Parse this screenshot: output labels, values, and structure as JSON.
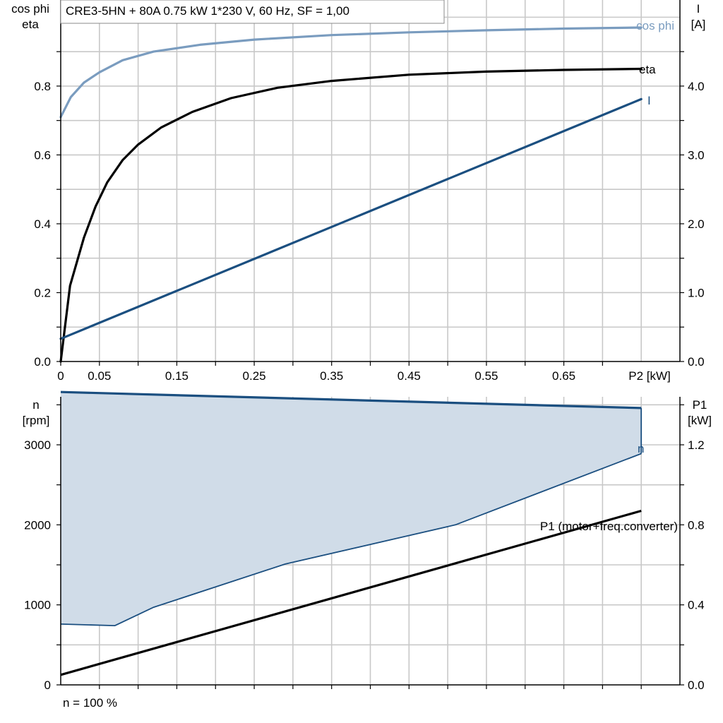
{
  "chart_data": [
    {
      "type": "line",
      "title": "CRE3-5HN + 80A   0.75 kW   1*230 V, 60 Hz, SF = 1,00",
      "xlabel": "P2 [kW]",
      "ylabel_left": [
        "cos phi",
        "eta"
      ],
      "ylabel_right": [
        "I",
        "[A]"
      ],
      "xlim": [
        0,
        0.8
      ],
      "ylim_left": [
        0,
        1.05
      ],
      "ylim_right": [
        0,
        5.25
      ],
      "x_ticks": [
        "0",
        "0.05",
        "0.15",
        "0.25",
        "0.35",
        "0.45",
        "0.55",
        "0.65"
      ],
      "y_ticks_left": [
        "0.0",
        "0.2",
        "0.4",
        "0.6",
        "0.8"
      ],
      "y_ticks_right": [
        "0.0",
        "1.0",
        "2.0",
        "3.0",
        "4.0"
      ],
      "grid": true,
      "series": [
        {
          "name": "cos phi",
          "axis": "left",
          "color": "#7a9cbf",
          "points": [
            [
              0,
              0.71
            ],
            [
              0.013,
              0.768
            ],
            [
              0.03,
              0.81
            ],
            [
              0.05,
              0.84
            ],
            [
              0.08,
              0.875
            ],
            [
              0.12,
              0.9
            ],
            [
              0.18,
              0.92
            ],
            [
              0.25,
              0.935
            ],
            [
              0.35,
              0.948
            ],
            [
              0.45,
              0.956
            ],
            [
              0.55,
              0.962
            ],
            [
              0.65,
              0.967
            ],
            [
              0.75,
              0.97
            ]
          ]
        },
        {
          "name": "eta",
          "axis": "left",
          "color": "#000000",
          "points": [
            [
              0,
              0
            ],
            [
              0.012,
              0.22
            ],
            [
              0.03,
              0.36
            ],
            [
              0.045,
              0.45
            ],
            [
              0.06,
              0.52
            ],
            [
              0.08,
              0.585
            ],
            [
              0.1,
              0.63
            ],
            [
              0.13,
              0.68
            ],
            [
              0.17,
              0.725
            ],
            [
              0.22,
              0.765
            ],
            [
              0.28,
              0.795
            ],
            [
              0.35,
              0.815
            ],
            [
              0.45,
              0.833
            ],
            [
              0.55,
              0.842
            ],
            [
              0.65,
              0.847
            ],
            [
              0.75,
              0.85
            ]
          ]
        },
        {
          "name": "I",
          "axis": "right",
          "color": "#1b4f80",
          "points": [
            [
              0,
              0.33
            ],
            [
              0.75,
              3.81
            ]
          ]
        }
      ]
    },
    {
      "type": "area",
      "xlabel": "",
      "ylabel_left": [
        "n",
        "[rpm]"
      ],
      "ylabel_right": [
        "P1",
        "[kW]"
      ],
      "ylim_left": [
        0,
        3600
      ],
      "ylim_right": [
        0,
        1.44
      ],
      "y_ticks_left": [
        "0",
        "1000",
        "2000",
        "3000"
      ],
      "y_ticks_right": [
        "0.0",
        "0.4",
        "0.8",
        "1.2"
      ],
      "grid": true,
      "footnote": "n = 100 %",
      "series": [
        {
          "name": "n",
          "axis": "left",
          "color": "#1b4f80",
          "fill": "#d0dce8",
          "upper": [
            [
              0,
              3660
            ],
            [
              0.75,
              3460
            ]
          ],
          "lower": [
            [
              0,
              760
            ],
            [
              0.07,
              740
            ],
            [
              0.12,
              970
            ],
            [
              0.29,
              1510
            ],
            [
              0.51,
              2000
            ],
            [
              0.75,
              2890
            ]
          ]
        },
        {
          "name": "P1 (motor+freq.converter)",
          "axis": "right",
          "color": "#000000",
          "points": [
            [
              0,
              0.05
            ],
            [
              0.75,
              0.87
            ]
          ]
        }
      ]
    }
  ]
}
